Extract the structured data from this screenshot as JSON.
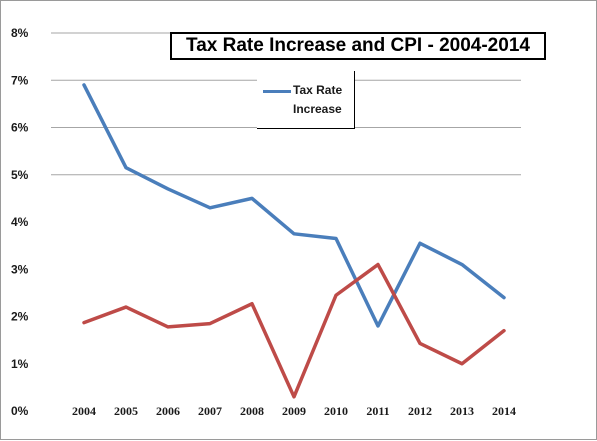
{
  "chart_data": {
    "type": "line",
    "title": "Tax Rate Increase and CPI - 2004-2014",
    "categories": [
      "2004",
      "2005",
      "2006",
      "2007",
      "2008",
      "2009",
      "2010",
      "2011",
      "2012",
      "2013",
      "2014"
    ],
    "series": [
      {
        "name": "Tax Rate Increase",
        "color": "#4a7ebb",
        "values": [
          6.9,
          5.15,
          4.7,
          4.3,
          4.5,
          3.75,
          3.65,
          1.8,
          3.55,
          3.1,
          2.4
        ]
      },
      {
        "color": "#be4b48",
        "values": [
          1.87,
          2.2,
          1.78,
          1.85,
          2.27,
          0.3,
          2.45,
          3.1,
          1.43,
          1.0,
          1.7
        ]
      }
    ],
    "y_ticks": [
      "0%",
      "1%",
      "2%",
      "3%",
      "4%",
      "5%",
      "6%",
      "7%",
      "8%"
    ],
    "ylim": [
      0,
      8
    ],
    "grid": "horizontal at 5%, 6%, 7%, 8%",
    "legend": {
      "position": "top-center",
      "entries": [
        "Tax Rate Increase"
      ]
    }
  }
}
